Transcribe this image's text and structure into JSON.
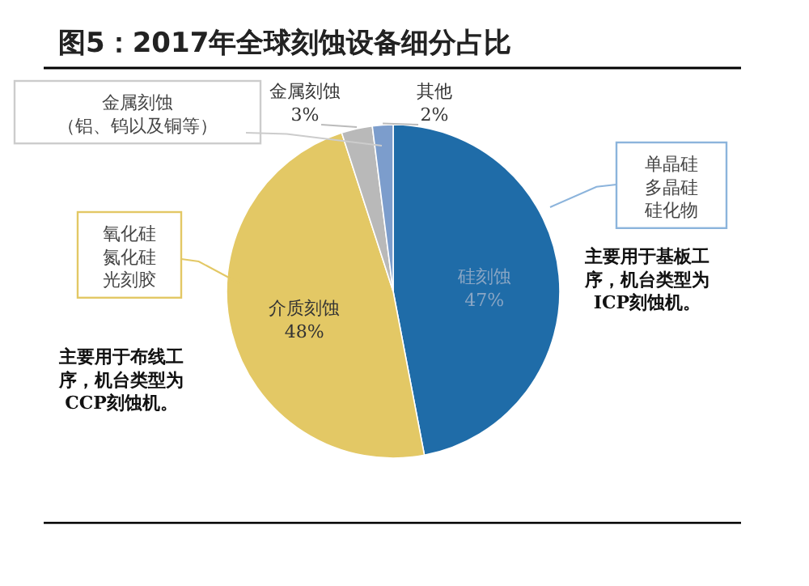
{
  "chart_data": {
    "type": "pie",
    "title": "图5：2017年全球刻蚀设备细分占比",
    "categories": [
      "硅刻蚀",
      "介质刻蚀",
      "金属刻蚀",
      "其他"
    ],
    "values": [
      47,
      48,
      3,
      2
    ],
    "colors": [
      "#1f6ca8",
      "#e3c865",
      "#b9b9b9",
      "#7c9dcc"
    ],
    "value_labels": [
      "47%",
      "48%",
      "3%",
      "2%"
    ],
    "annotations": [
      "金属刻蚀（铝、钨以及铜等）",
      "单晶硅多晶硅硅化物",
      "主要用于基板工序，机台类型为ICP刻蚀机。",
      "氧化硅氮化硅光刻胶",
      "主要用于布线工序，机台类型为CCP刻蚀机。"
    ]
  }
}
